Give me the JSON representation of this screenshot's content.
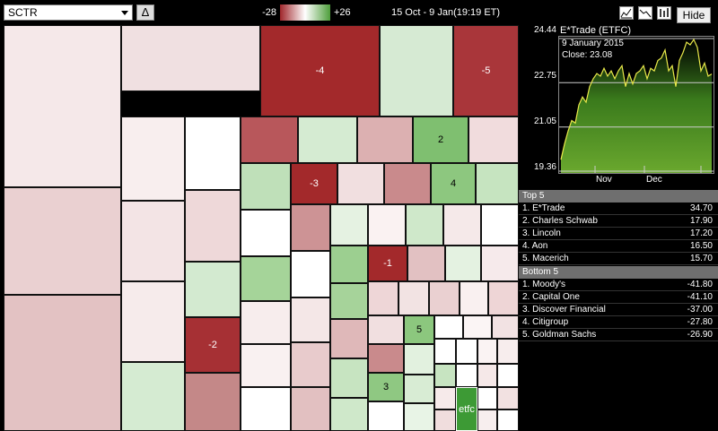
{
  "toolbar": {
    "selector_value": "SCTR",
    "delta_label": "Δ",
    "scale_min": "-28",
    "scale_max": "+26",
    "date_range": "15 Oct - 9 Jan(19:19 ET)",
    "hide_label": "Hide",
    "icons": [
      "chart-type-icon",
      "line-icon",
      "bars-icon"
    ]
  },
  "colors": {
    "neg_strong": "#a3292b",
    "neg_light": "#f0dcdc",
    "pos_strong": "#5aa54c",
    "pos_light": "#dbefd9"
  },
  "heatmap": {
    "labels": [
      "-4",
      "-5",
      "2",
      "-3",
      "4",
      "-1",
      "-2",
      "5",
      "3",
      "etfc"
    ]
  },
  "chart": {
    "title": "E*Trade (ETFC)",
    "tooltip_date": "9  January 2015",
    "tooltip_close": "Close: 23.08",
    "y_labels": [
      "24.44",
      "22.75",
      "21.05",
      "19.36"
    ],
    "x_labels": [
      "Nov",
      "Dec"
    ]
  },
  "chart_data": {
    "type": "area",
    "title": "E*Trade (ETFC)",
    "xlabel": "",
    "ylabel": "",
    "ylim": [
      19.36,
      24.44
    ],
    "values": [
      19.8,
      20.4,
      20.9,
      21.3,
      21.2,
      21.9,
      22.2,
      22.0,
      22.6,
      22.9,
      23.1,
      23.0,
      23.3,
      23.0,
      23.2,
      22.9,
      23.2,
      23.4,
      22.6,
      23.1,
      22.7,
      23.1,
      23.2,
      23.4,
      22.9,
      23.3,
      23.2,
      23.6,
      23.7,
      24.0,
      23.2,
      23.4,
      22.6,
      23.6,
      23.9,
      24.3,
      24.2,
      24.4,
      24.1,
      23.2,
      23.5,
      23.0,
      23.08
    ]
  },
  "top5": {
    "header": "Top 5",
    "items": [
      {
        "name": "1. E*Trade",
        "value": "34.70"
      },
      {
        "name": "2. Charles Schwab",
        "value": "17.90"
      },
      {
        "name": "3. Lincoln",
        "value": "17.20"
      },
      {
        "name": "4. Aon",
        "value": "16.50"
      },
      {
        "name": "5. Macerich",
        "value": "15.70"
      }
    ]
  },
  "bottom5": {
    "header": "Bottom 5",
    "items": [
      {
        "name": "1. Moody's",
        "value": "-41.80"
      },
      {
        "name": "2. Capital One",
        "value": "-41.10"
      },
      {
        "name": "3. Discover Financial",
        "value": "-37.00"
      },
      {
        "name": "4. Citigroup",
        "value": "-27.80"
      },
      {
        "name": "5. Goldman Sachs",
        "value": "-26.90"
      }
    ]
  }
}
